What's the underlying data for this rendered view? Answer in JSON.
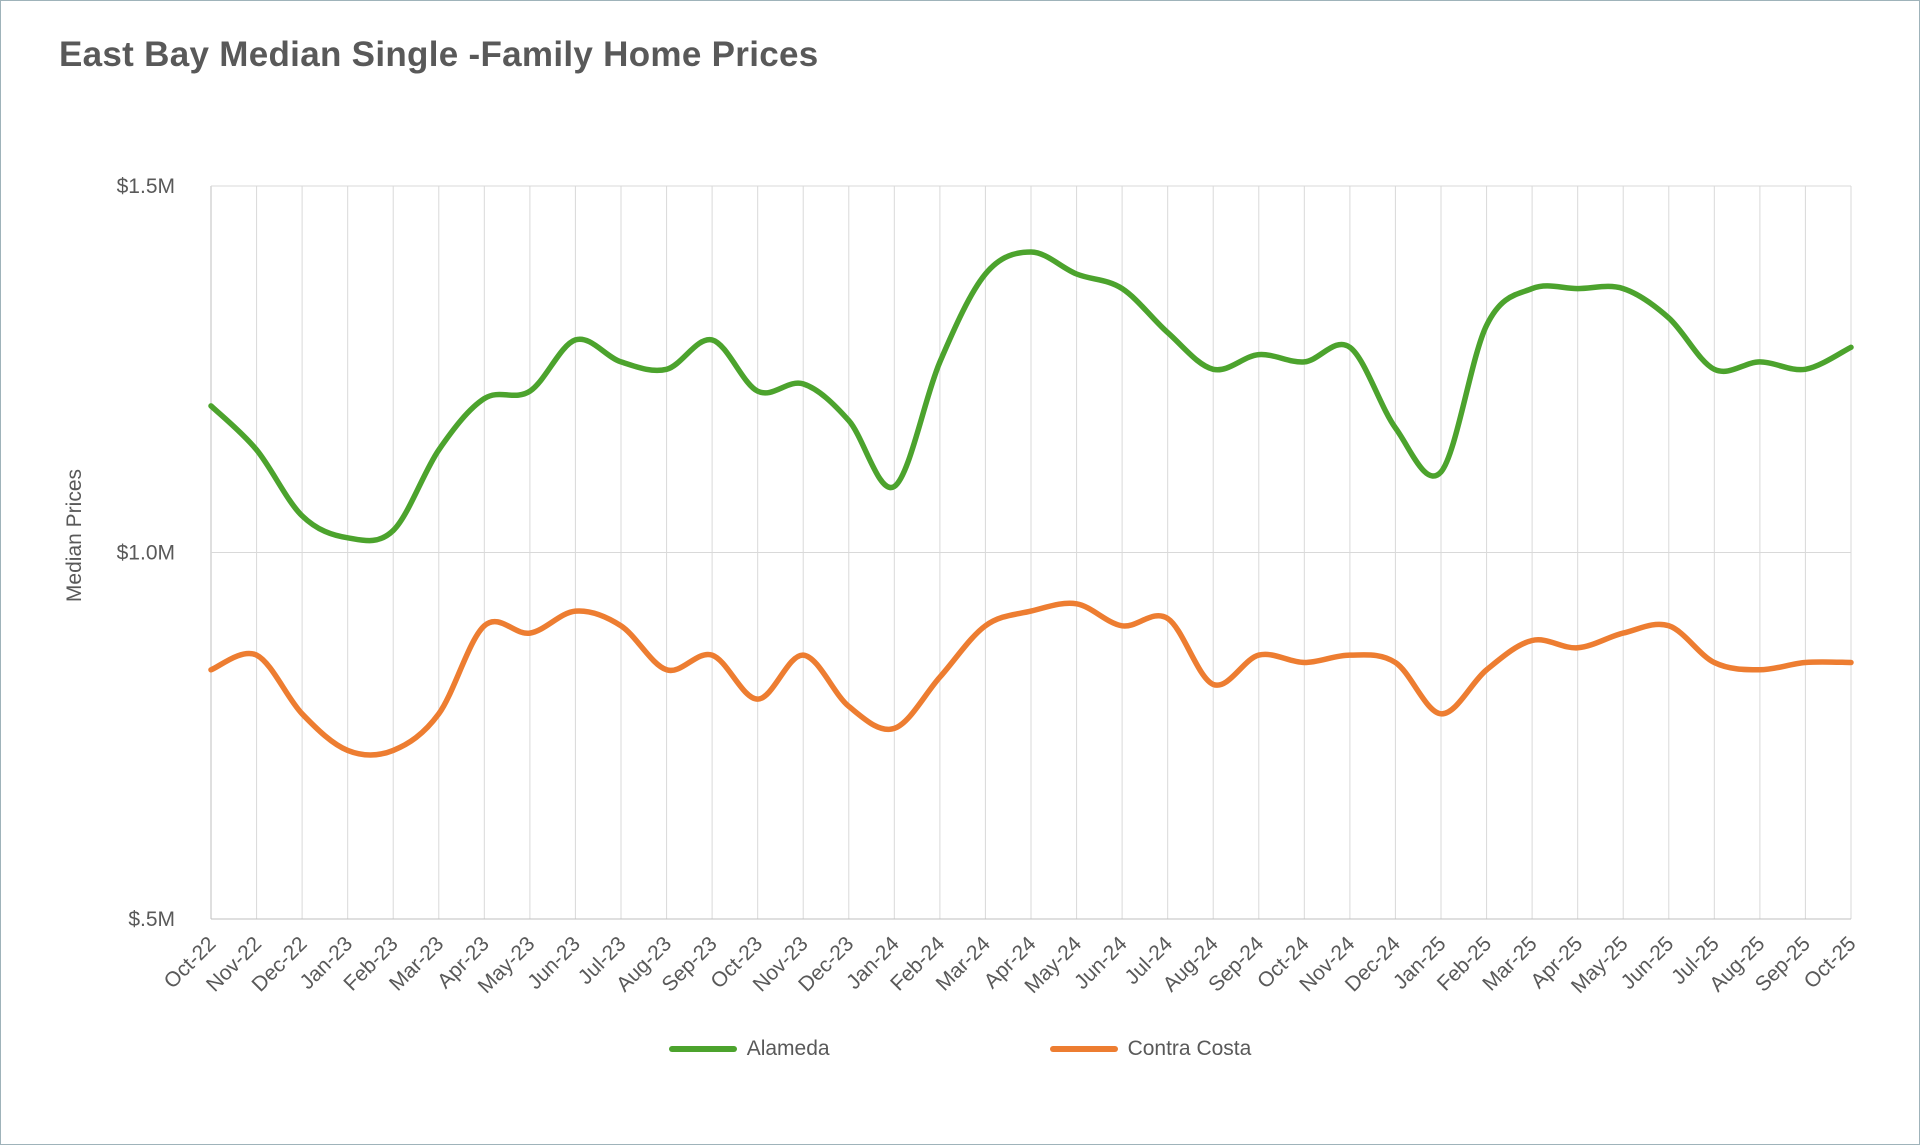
{
  "chart_data": {
    "type": "line",
    "title": "East Bay Median Single -Family Home Prices",
    "xlabel": "",
    "ylabel": "Median Prices",
    "units": "millions USD",
    "ylim": [
      0.5,
      1.5
    ],
    "grid": "vertical-per-category-and-horizontal-at-ticks",
    "legend_position": "bottom-center",
    "yticks": [
      {
        "label": "$1.5M",
        "value": 1.5
      },
      {
        "label": "$1.0M",
        "value": 1.0
      },
      {
        "label": "$.5M",
        "value": 0.5
      }
    ],
    "categories": [
      "Oct-22",
      "Nov-22",
      "Dec-22",
      "Jan-23",
      "Feb-23",
      "Mar-23",
      "Apr-23",
      "May-23",
      "Jun-23",
      "Jul-23",
      "Aug-23",
      "Sep-23",
      "Oct-23",
      "Nov-23",
      "Dec-23",
      "Jan-24",
      "Feb-24",
      "Mar-24",
      "Apr-24",
      "May-24",
      "Jun-24",
      "Jul-24",
      "Aug-24",
      "Sep-24",
      "Oct-24",
      "Nov-24",
      "Dec-24",
      "Jan-25",
      "Feb-25",
      "Mar-25",
      "Apr-25",
      "May-25",
      "Jun-25",
      "Jul-25",
      "Aug-25",
      "Sep-25",
      "Oct-25"
    ],
    "series": [
      {
        "name": "Alameda",
        "color": "#4ca32d",
        "values": [
          1.2,
          1.14,
          1.05,
          1.02,
          1.03,
          1.14,
          1.21,
          1.22,
          1.29,
          1.26,
          1.25,
          1.29,
          1.22,
          1.23,
          1.18,
          1.09,
          1.26,
          1.38,
          1.41,
          1.38,
          1.36,
          1.3,
          1.25,
          1.27,
          1.26,
          1.28,
          1.17,
          1.11,
          1.31,
          1.36,
          1.36,
          1.36,
          1.32,
          1.25,
          1.26,
          1.25,
          1.28
        ]
      },
      {
        "name": "Contra Costa",
        "color": "#ed7d31",
        "values": [
          0.84,
          0.86,
          0.78,
          0.73,
          0.73,
          0.78,
          0.9,
          0.89,
          0.92,
          0.9,
          0.84,
          0.86,
          0.8,
          0.86,
          0.79,
          0.76,
          0.83,
          0.9,
          0.92,
          0.93,
          0.9,
          0.91,
          0.82,
          0.86,
          0.85,
          0.86,
          0.85,
          0.78,
          0.84,
          0.88,
          0.87,
          0.89,
          0.9,
          0.85,
          0.84,
          0.85,
          0.85
        ]
      }
    ],
    "colors": {
      "title_text": "#595959",
      "axis_text": "#595959",
      "gridline": "#d9d9d9",
      "axis_line": "#bfbfbf"
    }
  }
}
